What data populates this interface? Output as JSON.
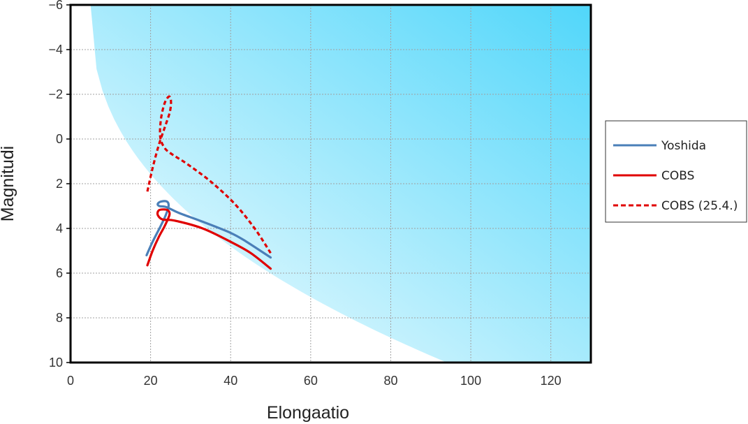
{
  "chart_data": {
    "type": "line",
    "xlabel": "Elongaatio",
    "ylabel": "Magnitudi",
    "xlim": [
      0,
      130
    ],
    "ylim": [
      10,
      -6
    ],
    "y_inverted": true,
    "grid": true,
    "x_ticks": [
      "0",
      "20",
      "40",
      "60",
      "80",
      "100",
      "120"
    ],
    "y_ticks": [
      "−6",
      "−4",
      "−2",
      "0",
      "2",
      "4",
      "6",
      "8",
      "10"
    ],
    "legend_position": "right",
    "background_gradient": [
      "#ffffff",
      "#4fd6fa"
    ],
    "series": [
      {
        "name": "Yoshida",
        "color": "#4a7fb8",
        "style": "solid",
        "x": [
          19,
          20.5,
          22.5,
          23.8,
          24.5,
          24.1,
          22.6,
          21.8,
          22.2,
          24,
          27,
          33,
          40,
          44,
          50
        ],
        "y": [
          5.2,
          4.6,
          3.9,
          3.4,
          3.0,
          2.8,
          2.8,
          2.9,
          3.0,
          3.05,
          3.3,
          3.7,
          4.2,
          4.6,
          5.3
        ]
      },
      {
        "name": "COBS",
        "color": "#e00000",
        "style": "solid",
        "x": [
          19.2,
          20.5,
          22,
          23.5,
          24.7,
          24.4,
          23.2,
          22,
          21.8,
          23,
          26,
          33,
          40,
          45,
          50
        ],
        "y": [
          5.65,
          5.0,
          4.4,
          3.9,
          3.4,
          3.2,
          3.15,
          3.2,
          3.4,
          3.6,
          3.65,
          4.0,
          4.6,
          5.1,
          5.8
        ]
      },
      {
        "name": "COBS (25.4.)",
        "color": "#e00000",
        "style": "dashed",
        "x": [
          19.2,
          20.5,
          22,
          23.5,
          24.8,
          25.1,
          24.6,
          23.5,
          22.6,
          22.4,
          23.5,
          25.5,
          29,
          35,
          41,
          46,
          50
        ],
        "y": [
          2.35,
          1.3,
          0.3,
          -0.5,
          -1.2,
          -1.7,
          -1.9,
          -1.6,
          -0.9,
          -0.1,
          0.4,
          0.7,
          1.1,
          1.9,
          2.9,
          4.0,
          5.1
        ]
      }
    ]
  }
}
